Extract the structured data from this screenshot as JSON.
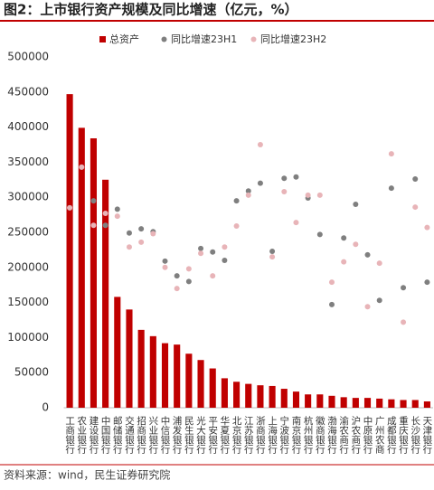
{
  "chart_data": {
    "type": "bar",
    "title": "图2：上市银行资产规模及同比增速（亿元，%）",
    "source": "资料来源：wind，民生证券研究院",
    "categories": [
      "工商银行",
      "农业银行",
      "建设银行",
      "中国银行",
      "邮储银行",
      "交通银行",
      "招商银行",
      "兴业银行",
      "中信银行",
      "浦发银行",
      "民生银行",
      "光大银行",
      "平安银行",
      "华夏银行",
      "北京银行",
      "江苏银行",
      "浙商银行",
      "上海银行",
      "宁波银行",
      "南京银行",
      "杭州银行",
      "徽商银行",
      "渤海银行",
      "渝农商行",
      "沪农商行",
      "中原银行",
      "广州农商",
      "成都银行",
      "重庆银行",
      "长沙银行",
      "天津银行"
    ],
    "series": [
      {
        "name": "总资产",
        "type": "bar",
        "color": "#c00000",
        "values": [
          447000,
          399000,
          384000,
          325000,
          158000,
          140000,
          111000,
          102000,
          92000,
          90000,
          77000,
          68000,
          56000,
          42000,
          37000,
          34000,
          32000,
          31000,
          27000,
          23000,
          19000,
          19000,
          17000,
          15000,
          14000,
          14000,
          13000,
          12000,
          11000,
          11000,
          9000
        ]
      },
      {
        "name": "同比增速23H1",
        "type": "scatter",
        "color": "#7f7f7f",
        "values": [
          285000,
          343000,
          295000,
          260000,
          283000,
          249000,
          255000,
          251000,
          209000,
          188000,
          180000,
          227000,
          222000,
          210000,
          295000,
          309000,
          320000,
          223000,
          327000,
          329000,
          299000,
          247000,
          147000,
          242000,
          290000,
          218000,
          153000,
          313000,
          171000,
          326000,
          179000
        ]
      },
      {
        "name": "同比增速23H2",
        "type": "scatter",
        "color": "#e8b4b8",
        "values": [
          285000,
          343000,
          260000,
          277000,
          273000,
          229000,
          236000,
          248000,
          200000,
          170000,
          198000,
          220000,
          188000,
          229000,
          259000,
          303000,
          375000,
          215000,
          308000,
          264000,
          303000,
          303000,
          179000,
          208000,
          233000,
          144000,
          206000,
          362000,
          122000,
          286000,
          257000
        ]
      }
    ],
    "ylim": [
      0,
      500000
    ],
    "yticks": [
      0,
      50000,
      100000,
      150000,
      200000,
      250000,
      300000,
      350000,
      400000,
      450000,
      500000
    ],
    "grid": false
  }
}
